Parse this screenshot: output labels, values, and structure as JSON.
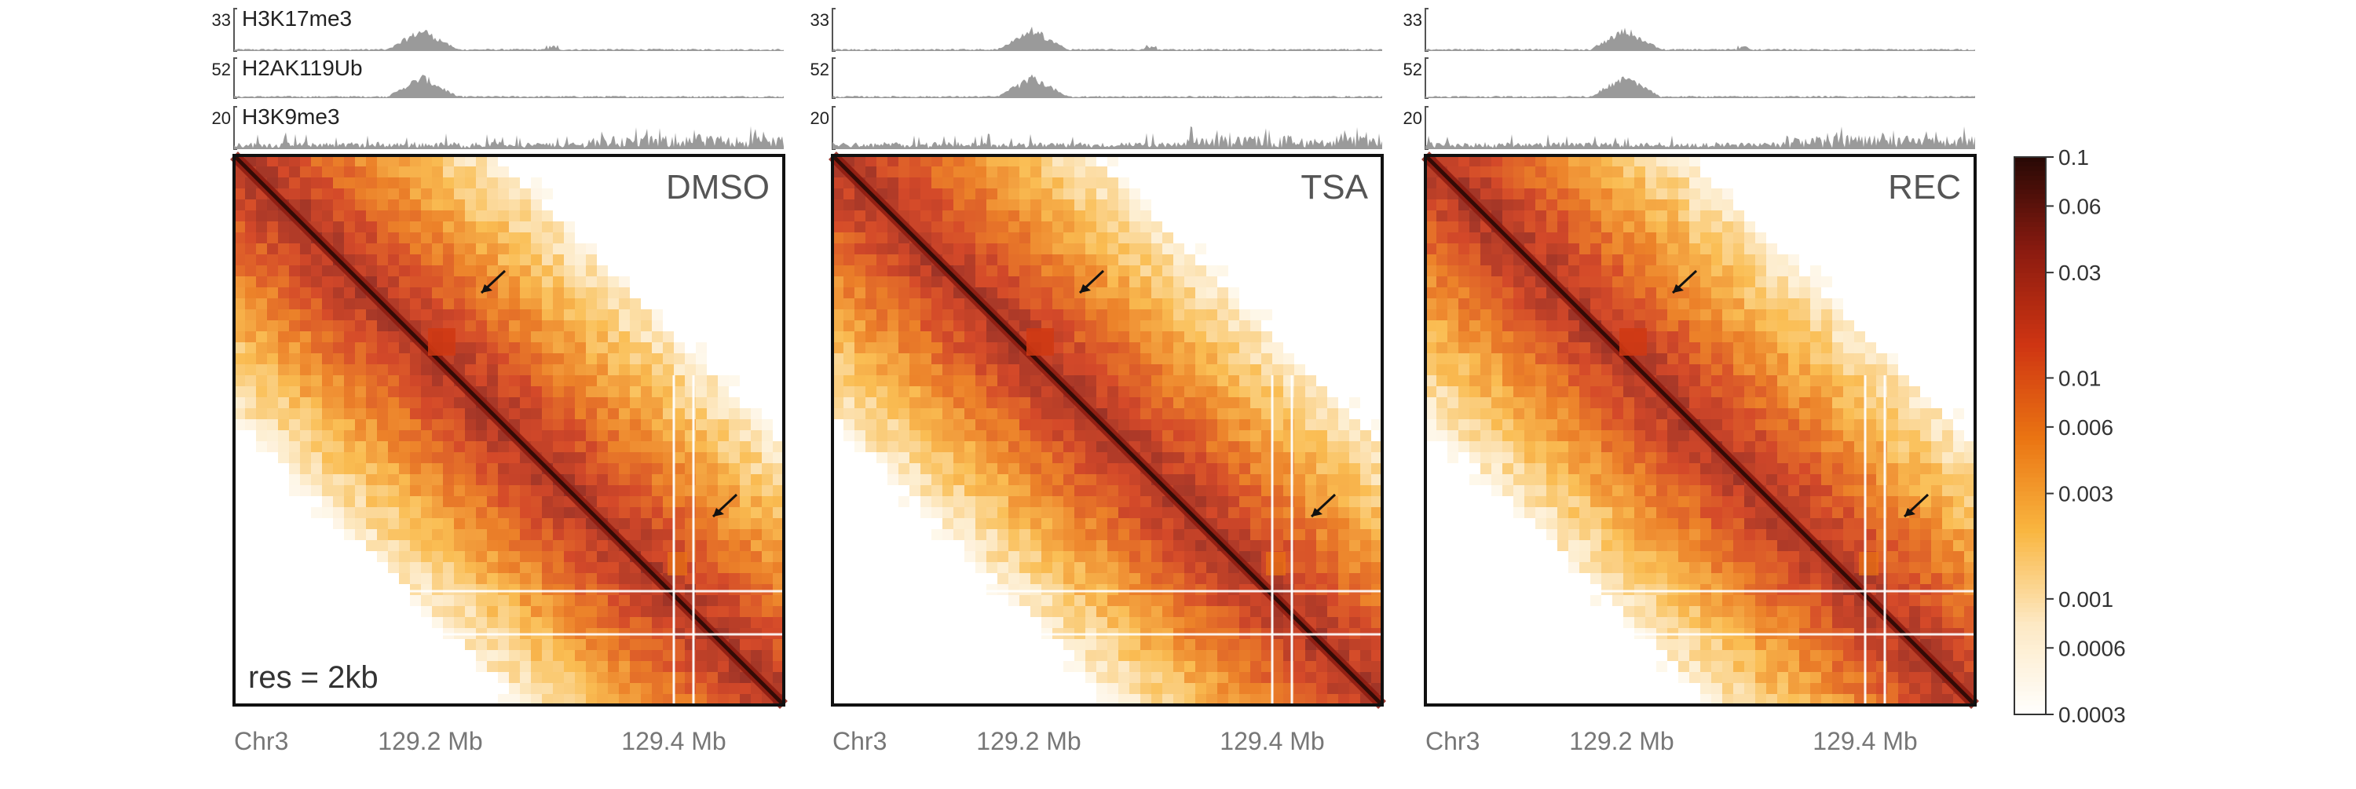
{
  "chart_data": {
    "type": "heatmap",
    "panels": [
      {
        "label": "DMSO",
        "annotation": "res = 2kb",
        "tracks": [
          {
            "name": "H3K17me3",
            "max": "33"
          },
          {
            "name": "H2AK119Ub",
            "max": "52"
          },
          {
            "name": "H3K9me3",
            "max": "20"
          }
        ],
        "x_axis": {
          "chrom_label": "Chr3",
          "ticks": [
            "129.2 Mb",
            "129.4 Mb"
          ]
        }
      },
      {
        "label": "TSA",
        "annotation": "",
        "tracks": [
          {
            "name": "",
            "max": "33"
          },
          {
            "name": "",
            "max": "52"
          },
          {
            "name": "",
            "max": "20"
          }
        ],
        "x_axis": {
          "chrom_label": "Chr3",
          "ticks": [
            "129.2 Mb",
            "129.4 Mb"
          ]
        }
      },
      {
        "label": "REC",
        "annotation": "",
        "tracks": [
          {
            "name": "",
            "max": "33"
          },
          {
            "name": "",
            "max": "52"
          },
          {
            "name": "",
            "max": "20"
          }
        ],
        "x_axis": {
          "chrom_label": "Chr3",
          "ticks": [
            "129.2 Mb",
            "129.4 Mb"
          ]
        }
      }
    ],
    "colorbar": {
      "scale": "log",
      "range": [
        0.0003,
        0.1
      ],
      "ticks": [
        {
          "value": 0.1,
          "label": "0.1"
        },
        {
          "value": 0.06,
          "label": "0.06"
        },
        {
          "value": 0.03,
          "label": "0.03"
        },
        {
          "value": 0.01,
          "label": "0.01"
        },
        {
          "value": 0.006,
          "label": "0.006"
        },
        {
          "value": 0.003,
          "label": "0.003"
        },
        {
          "value": 0.001,
          "label": "0.001"
        },
        {
          "value": 0.0006,
          "label": "0.0006"
        },
        {
          "value": 0.0003,
          "label": "0.0003"
        }
      ],
      "colors": [
        "#ffffff",
        "#fde9c4",
        "#f9b640",
        "#ea7412",
        "#cf3512",
        "#8c1b10",
        "#2a0905"
      ]
    },
    "grid": false,
    "legend": "right"
  }
}
